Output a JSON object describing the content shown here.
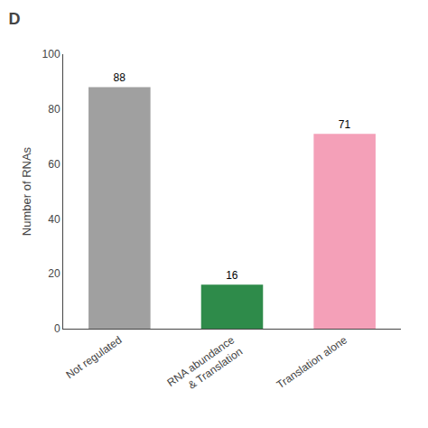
{
  "chart_data": {
    "type": "bar",
    "title": "D",
    "categories": [
      "Not regulated",
      "RNA abundance\n& Translation",
      "Translation alone"
    ],
    "values": [
      88,
      16,
      71
    ],
    "colors": [
      "#a0a0a0",
      "#2e8b4a",
      "#f4a0b8"
    ],
    "ylabel": "Number of RNAs",
    "ylim": [
      0,
      100
    ],
    "yticks": [
      0,
      20,
      40,
      60,
      80,
      100
    ],
    "data_labels": true,
    "grid": false,
    "legend": false
  }
}
